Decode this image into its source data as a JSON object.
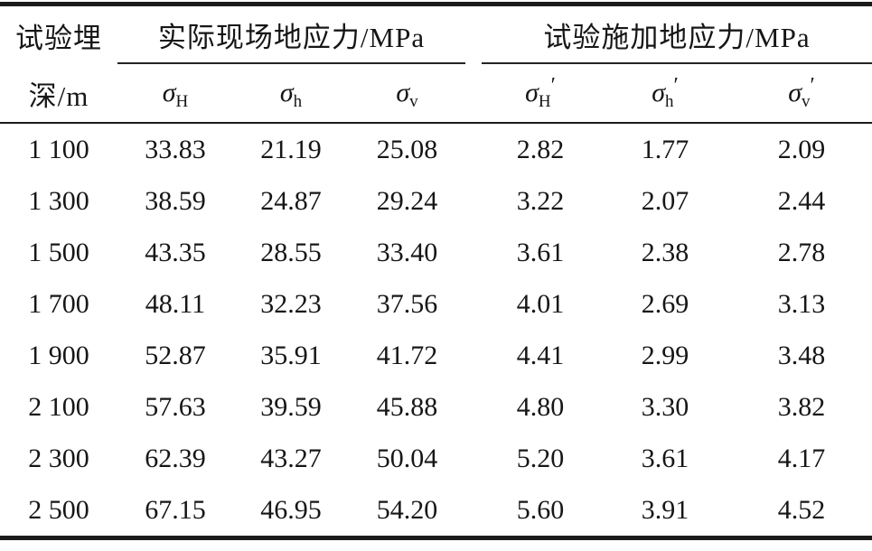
{
  "colors": {
    "background": "#ffffff",
    "text": "#161616",
    "rule": "#1b1b1b"
  },
  "table": {
    "row_header": {
      "line1": "试验埋",
      "line2": "深/m"
    },
    "groups": [
      {
        "label": "实际现场地应力/MPa",
        "subcols": [
          {
            "symbol": "σ",
            "subscript": "H",
            "prime": ""
          },
          {
            "symbol": "σ",
            "subscript": "h",
            "prime": ""
          },
          {
            "symbol": "σ",
            "subscript": "v",
            "prime": ""
          }
        ]
      },
      {
        "label": "试验施加地应力/MPa",
        "subcols": [
          {
            "symbol": "σ",
            "subscript": "H",
            "prime": "′"
          },
          {
            "symbol": "σ",
            "subscript": "h",
            "prime": "′"
          },
          {
            "symbol": "σ",
            "subscript": "v",
            "prime": "′"
          }
        ]
      }
    ],
    "rows": [
      {
        "depth": "1 100",
        "values": [
          "33.83",
          "21.19",
          "25.08",
          "2.82",
          "1.77",
          "2.09"
        ]
      },
      {
        "depth": "1 300",
        "values": [
          "38.59",
          "24.87",
          "29.24",
          "3.22",
          "2.07",
          "2.44"
        ]
      },
      {
        "depth": "1 500",
        "values": [
          "43.35",
          "28.55",
          "33.40",
          "3.61",
          "2.38",
          "2.78"
        ]
      },
      {
        "depth": "1 700",
        "values": [
          "48.11",
          "32.23",
          "37.56",
          "4.01",
          "2.69",
          "3.13"
        ]
      },
      {
        "depth": "1 900",
        "values": [
          "52.87",
          "35.91",
          "41.72",
          "4.41",
          "2.99",
          "3.48"
        ]
      },
      {
        "depth": "2 100",
        "values": [
          "57.63",
          "39.59",
          "45.88",
          "4.80",
          "3.30",
          "3.82"
        ]
      },
      {
        "depth": "2 300",
        "values": [
          "62.39",
          "43.27",
          "50.04",
          "5.20",
          "3.61",
          "4.17"
        ]
      },
      {
        "depth": "2 500",
        "values": [
          "67.15",
          "46.95",
          "54.20",
          "5.60",
          "3.91",
          "4.52"
        ]
      }
    ]
  }
}
